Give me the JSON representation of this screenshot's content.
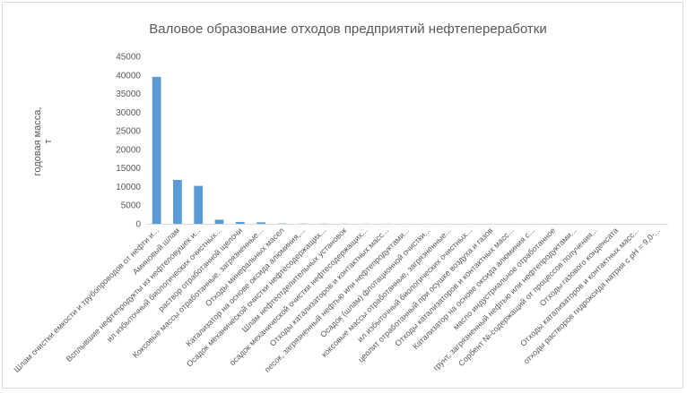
{
  "chart_data": {
    "type": "bar",
    "title": "Валовое образование отходов предприятий нефтепереработки",
    "xlabel": "",
    "ylabel": "годовая масса, т",
    "ylim": [
      0,
      45000
    ],
    "yticks": [
      0,
      5000,
      10000,
      15000,
      20000,
      25000,
      30000,
      35000,
      40000,
      45000
    ],
    "grid": false,
    "legend": "none",
    "bar_color": "#5b9bd5",
    "categories": [
      "Шлам очистки емкости и трубопроводов от нефти и...",
      "Аминовый шлам",
      "Всплывшие нефтепродукты из нефтеловушек и...",
      "ил избыточный биологических очистных...",
      "раствор отработанной щелочи",
      "Коксовые массы отработанные, загрязненные...",
      "Отходы минеральных масел",
      "Катализатор на основе оксида алюминия,...",
      "Осадок механической очистки нефтесодержащих...",
      "Шлам нефтеотделительных установок",
      "осадок механической очистки нефтесодержащих...",
      "Отходы катализаторов и контактных масс...",
      "песок, загрязненный нефтью или нефтепродуктами...",
      "Осадок (шлам) флотационной очистки...",
      "коксовые массы отработанные, загрязненные...",
      "ил избыточный биологических очистных...",
      "цеолит отработанный при осушке воздуха и газов",
      "Отходы катализаторов и контактных масс...",
      "Катализатор на основе оксида алюминия с...",
      "масло индустриальное отработанное",
      "грунт, загрязненный нефтью или нефтепродуктами...",
      "Сорбент Ni-содержащий от процессов получения...",
      "Отходы газового конденсата",
      "Отходы катализаторов и контактных масс...",
      "отходы растворов гидроксида натрия с pH = 9,0-..."
    ],
    "values": [
      39500,
      11800,
      10200,
      1100,
      500,
      400,
      80,
      60,
      50,
      40,
      35,
      30,
      25,
      20,
      18,
      15,
      12,
      10,
      8,
      7,
      6,
      5,
      4,
      3,
      2
    ]
  }
}
